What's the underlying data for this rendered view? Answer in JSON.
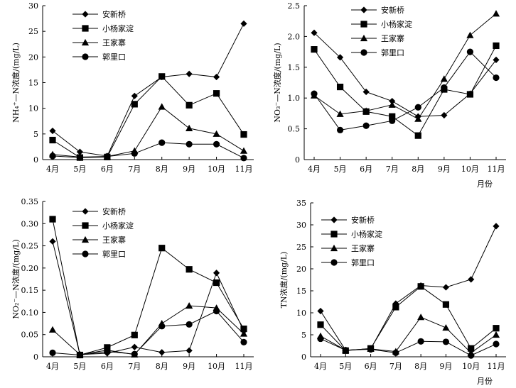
{
  "chart_data": [
    {
      "type": "line",
      "ylabel": "NH₄⁺—N浓度/(mg/L)",
      "xlabel": "",
      "categories": [
        "4月",
        "5月",
        "6月",
        "7月",
        "8月",
        "9月",
        "10月",
        "11月"
      ],
      "ylim": [
        0,
        30
      ],
      "yticks": [
        "0",
        "5",
        "10",
        "15",
        "20",
        "25",
        "30"
      ],
      "series": [
        {
          "name": "安新桥",
          "marker": "diamond",
          "values": [
            5.6,
            1.5,
            0.7,
            12.4,
            16.1,
            16.7,
            16.1,
            26.5
          ]
        },
        {
          "name": "小杨家淀",
          "marker": "square",
          "values": [
            3.8,
            0.4,
            0.5,
            10.8,
            16.2,
            10.6,
            12.9,
            4.9
          ]
        },
        {
          "name": "王家寨",
          "marker": "triangle",
          "values": [
            1.0,
            0.5,
            0.6,
            1.7,
            10.3,
            6.1,
            5.0,
            1.7
          ]
        },
        {
          "name": "郭里口",
          "marker": "circle",
          "values": [
            0.7,
            0.4,
            0.6,
            1.2,
            3.3,
            3.0,
            3.0,
            0.3
          ]
        }
      ],
      "legend": "top-left",
      "grid": false
    },
    {
      "type": "line",
      "ylabel": "NO₃⁻—N浓度/(mg/L)",
      "xlabel": "月份",
      "categories": [
        "4月",
        "5月",
        "6月",
        "7月",
        "8月",
        "9月",
        "10月",
        "11月"
      ],
      "ylim": [
        0,
        2.5
      ],
      "yticks": [
        "0",
        "0.5",
        "1.0",
        "1.5",
        "2.0",
        "2.5"
      ],
      "series": [
        {
          "name": "安新桥",
          "marker": "diamond",
          "values": [
            2.06,
            1.66,
            1.1,
            0.95,
            0.7,
            0.72,
            1.07,
            1.62
          ]
        },
        {
          "name": "小杨家淀",
          "marker": "square",
          "values": [
            1.79,
            1.18,
            0.78,
            0.7,
            0.39,
            1.14,
            1.06,
            1.85
          ]
        },
        {
          "name": "王家寨",
          "marker": "triangle",
          "values": [
            1.04,
            0.74,
            0.79,
            0.89,
            0.66,
            1.31,
            2.02,
            2.37
          ]
        },
        {
          "name": "郭里口",
          "marker": "circle",
          "values": [
            1.07,
            0.48,
            0.55,
            0.63,
            0.85,
            1.17,
            1.75,
            1.33
          ]
        }
      ],
      "legend": "top-center",
      "grid": false
    },
    {
      "type": "line",
      "ylabel": "NO₂⁻—N浓度/(mg/L)",
      "xlabel": "",
      "categories": [
        "4月",
        "5月",
        "6月",
        "7月",
        "8月",
        "9月",
        "10月",
        "11月"
      ],
      "ylim": [
        0,
        0.35
      ],
      "yticks": [
        "0",
        "0.05",
        "0.10",
        "0.15",
        "0.20",
        "0.25",
        "0.30",
        "0.35"
      ],
      "series": [
        {
          "name": "安新桥",
          "marker": "diamond",
          "values": [
            0.26,
            0.005,
            0.008,
            0.022,
            0.01,
            0.014,
            0.189,
            0.058
          ]
        },
        {
          "name": "小杨家淀",
          "marker": "square",
          "values": [
            0.31,
            0.004,
            0.021,
            0.049,
            0.245,
            0.197,
            0.167,
            0.063
          ]
        },
        {
          "name": "王家寨",
          "marker": "triangle",
          "values": [
            0.061,
            0.005,
            0.015,
            0.005,
            0.075,
            0.115,
            0.11,
            0.052
          ]
        },
        {
          "name": "郭里口",
          "marker": "circle",
          "values": [
            0.009,
            0.004,
            0.012,
            0.006,
            0.069,
            0.073,
            0.103,
            0.033
          ]
        }
      ],
      "legend": "top-center",
      "grid": false
    },
    {
      "type": "line",
      "ylabel": "TN浓度/(mg/L)",
      "xlabel": "月份",
      "categories": [
        "4月",
        "5月",
        "6月",
        "7月",
        "8月",
        "9月",
        "10月",
        "11月"
      ],
      "ylim": [
        0,
        35
      ],
      "yticks": [
        "0",
        "5",
        "10",
        "15",
        "20",
        "25",
        "30",
        "35"
      ],
      "series": [
        {
          "name": "安新桥",
          "marker": "diamond",
          "values": [
            10.4,
            1.5,
            1.8,
            12.1,
            16.2,
            15.8,
            17.6,
            29.7
          ]
        },
        {
          "name": "小杨家淀",
          "marker": "square",
          "values": [
            7.3,
            1.4,
            1.9,
            11.3,
            16.0,
            11.9,
            1.9,
            6.5
          ]
        },
        {
          "name": "王家寨",
          "marker": "triangle",
          "values": [
            4.7,
            1.5,
            1.8,
            1.2,
            9.0,
            6.6,
            0.9,
            5.0
          ]
        },
        {
          "name": "郭里口",
          "marker": "circle",
          "values": [
            4.1,
            1.5,
            1.7,
            0.9,
            3.5,
            3.4,
            0.3,
            2.9
          ]
        }
      ],
      "legend": "top-left",
      "grid": false
    }
  ]
}
